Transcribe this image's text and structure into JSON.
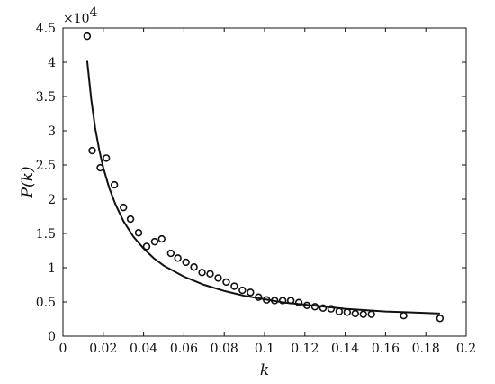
{
  "chart_data": {
    "type": "scatter",
    "title": "",
    "xlabel": "k",
    "ylabel": "P(k)",
    "y_multiplier_label": "×10",
    "y_multiplier_exponent": "4",
    "xlim": [
      0,
      0.2
    ],
    "ylim": [
      0,
      4.5
    ],
    "x_ticks": [
      0,
      0.02,
      0.04,
      0.06,
      0.08,
      0.1,
      0.12,
      0.14,
      0.16,
      0.18,
      0.2
    ],
    "x_tick_labels": [
      "0",
      "0.02",
      "0.04",
      "0.06",
      "0.08",
      "0.1",
      "0.12",
      "0.14",
      "0.16",
      "0.18",
      "0.2"
    ],
    "y_ticks": [
      0,
      0.5,
      1,
      1.5,
      2,
      2.5,
      3,
      3.5,
      4,
      4.5
    ],
    "y_tick_labels": [
      "0",
      "0.5",
      "1",
      "1.5",
      "2",
      "2.5",
      "3",
      "3.5",
      "4",
      "4.5"
    ],
    "grid": false,
    "legend": "none",
    "series": [
      {
        "kind": "scatter",
        "marker": "open-circle",
        "x": [
          0.012,
          0.0145,
          0.0185,
          0.0215,
          0.0255,
          0.03,
          0.0335,
          0.0375,
          0.0415,
          0.0455,
          0.049,
          0.0535,
          0.057,
          0.061,
          0.065,
          0.069,
          0.073,
          0.077,
          0.081,
          0.085,
          0.089,
          0.093,
          0.097,
          0.101,
          0.105,
          0.109,
          0.113,
          0.117,
          0.121,
          0.125,
          0.129,
          0.133,
          0.137,
          0.141,
          0.145,
          0.149,
          0.153,
          0.169,
          0.187
        ],
        "y": [
          4.38,
          2.71,
          2.46,
          2.6,
          2.21,
          1.88,
          1.71,
          1.51,
          1.31,
          1.38,
          1.42,
          1.21,
          1.14,
          1.08,
          1.01,
          0.93,
          0.91,
          0.85,
          0.79,
          0.73,
          0.67,
          0.64,
          0.57,
          0.53,
          0.52,
          0.52,
          0.52,
          0.49,
          0.45,
          0.43,
          0.41,
          0.4,
          0.36,
          0.35,
          0.33,
          0.32,
          0.32,
          0.3,
          0.26
        ]
      },
      {
        "kind": "line",
        "x": [
          0.012,
          0.014,
          0.016,
          0.018,
          0.02,
          0.023,
          0.026,
          0.03,
          0.035,
          0.04,
          0.045,
          0.05,
          0.06,
          0.07,
          0.08,
          0.09,
          0.1,
          0.11,
          0.12,
          0.13,
          0.14,
          0.15,
          0.16,
          0.17,
          0.18,
          0.187
        ],
        "y": [
          4.02,
          3.46,
          3.04,
          2.72,
          2.46,
          2.16,
          1.93,
          1.68,
          1.45,
          1.28,
          1.14,
          1.03,
          0.87,
          0.75,
          0.66,
          0.59,
          0.54,
          0.49,
          0.46,
          0.43,
          0.4,
          0.38,
          0.36,
          0.35,
          0.34,
          0.33
        ]
      }
    ]
  }
}
